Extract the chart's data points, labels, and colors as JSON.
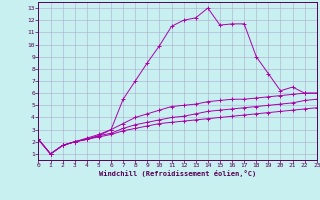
{
  "xlabel": "Windchill (Refroidissement éolien,°C)",
  "bg_color": "#c8f0f0",
  "line_color": "#aa00aa",
  "grid_color": "#aaaacc",
  "spine_color": "#550055",
  "tick_color": "#550055",
  "xlim": [
    0,
    23
  ],
  "ylim": [
    0.5,
    13.5
  ],
  "xticks": [
    0,
    1,
    2,
    3,
    4,
    5,
    6,
    7,
    8,
    9,
    10,
    11,
    12,
    13,
    14,
    15,
    16,
    17,
    18,
    19,
    20,
    21,
    22,
    23
  ],
  "yticks": [
    1,
    2,
    3,
    4,
    5,
    6,
    7,
    8,
    9,
    10,
    11,
    12,
    13
  ],
  "lines": [
    {
      "x": [
        0,
        1,
        2,
        3,
        4,
        5,
        6,
        7,
        8,
        9,
        10,
        11,
        12,
        13,
        14,
        15,
        16,
        17,
        18,
        19,
        20,
        21,
        22,
        23
      ],
      "y": [
        2.2,
        1.0,
        1.7,
        2.0,
        2.2,
        2.5,
        3.0,
        5.5,
        7.0,
        8.5,
        9.9,
        11.5,
        12.0,
        12.2,
        13.0,
        11.6,
        11.7,
        11.7,
        9.0,
        7.6,
        6.2,
        6.5,
        6.0,
        6.0
      ]
    },
    {
      "x": [
        0,
        1,
        2,
        3,
        4,
        5,
        6,
        7,
        8,
        9,
        10,
        11,
        12,
        13,
        14,
        15,
        16,
        17,
        18,
        19,
        20,
        21,
        22,
        23
      ],
      "y": [
        2.2,
        1.0,
        1.7,
        2.0,
        2.3,
        2.6,
        3.0,
        3.5,
        4.0,
        4.3,
        4.6,
        4.9,
        5.0,
        5.1,
        5.3,
        5.4,
        5.5,
        5.5,
        5.6,
        5.7,
        5.8,
        5.9,
        6.0,
        6.0
      ]
    },
    {
      "x": [
        0,
        1,
        2,
        3,
        4,
        5,
        6,
        7,
        8,
        9,
        10,
        11,
        12,
        13,
        14,
        15,
        16,
        17,
        18,
        19,
        20,
        21,
        22,
        23
      ],
      "y": [
        2.2,
        1.0,
        1.7,
        2.0,
        2.2,
        2.5,
        2.7,
        3.1,
        3.4,
        3.6,
        3.8,
        4.0,
        4.1,
        4.3,
        4.5,
        4.6,
        4.7,
        4.8,
        4.9,
        5.0,
        5.1,
        5.2,
        5.4,
        5.5
      ]
    },
    {
      "x": [
        0,
        1,
        2,
        3,
        4,
        5,
        6,
        7,
        8,
        9,
        10,
        11,
        12,
        13,
        14,
        15,
        16,
        17,
        18,
        19,
        20,
        21,
        22,
        23
      ],
      "y": [
        2.2,
        1.0,
        1.7,
        2.0,
        2.2,
        2.4,
        2.6,
        2.9,
        3.1,
        3.3,
        3.5,
        3.6,
        3.7,
        3.8,
        3.9,
        4.0,
        4.1,
        4.2,
        4.3,
        4.4,
        4.5,
        4.6,
        4.7,
        4.8
      ]
    }
  ]
}
